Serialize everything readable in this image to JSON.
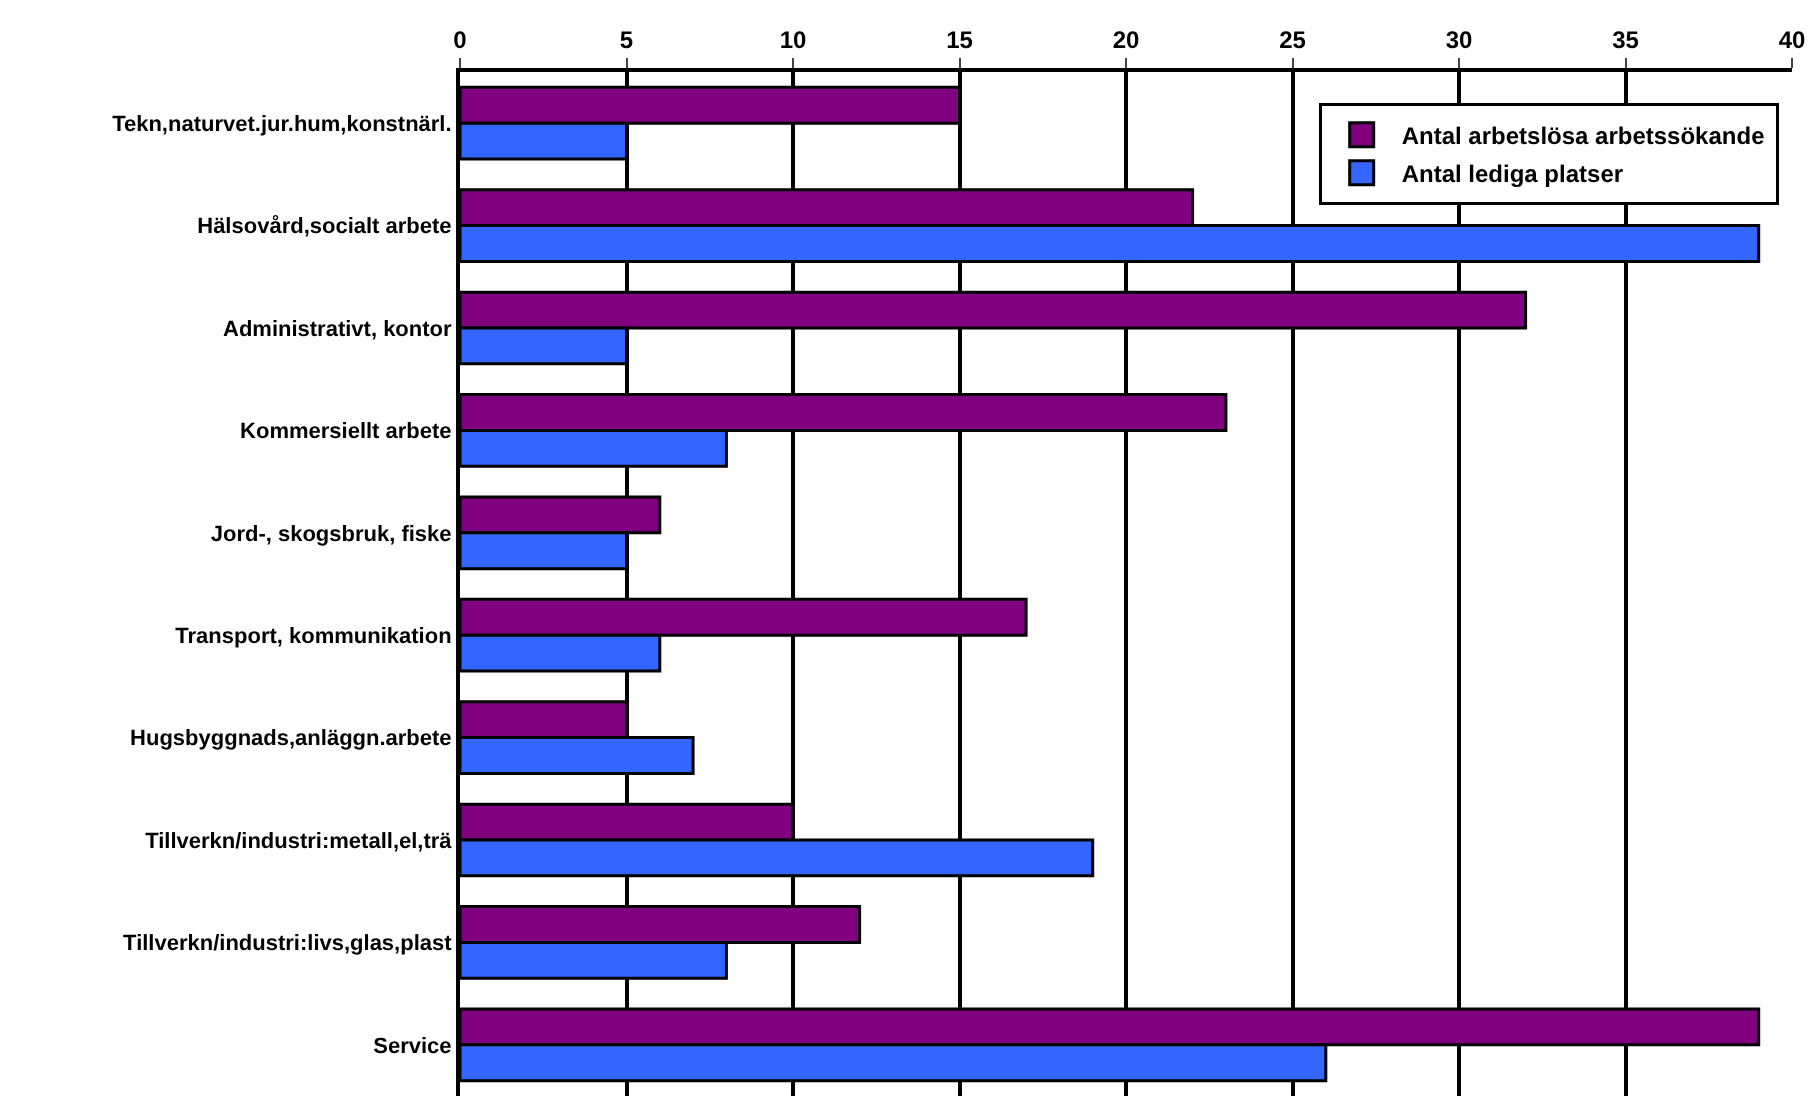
{
  "chart_data": {
    "type": "bar",
    "orientation": "horizontal",
    "categories": [
      "Tekn,naturvet.jur.hum,konstnärl.",
      "Hälsovård,socialt arbete",
      "Administrativt, kontor",
      "Kommersiellt arbete",
      "Jord-, skogsbruk, fiske",
      "Transport, kommunikation",
      "Hugsbyggnads,anläggn.arbete",
      "Tillverkn/industri:metall,el,trä",
      "Tillverkn/industri:livs,glas,plast",
      "Service"
    ],
    "series": [
      {
        "name": "Antal arbetslösa arbetssökande",
        "color": "#800080",
        "values": [
          15,
          22,
          32,
          23,
          6,
          17,
          5,
          10,
          12,
          39
        ]
      },
      {
        "name": "Antal lediga platser",
        "color": "#3366ff",
        "values": [
          5,
          39,
          5,
          8,
          5,
          6,
          7,
          19,
          8,
          26
        ]
      }
    ],
    "xlim": [
      0,
      40
    ],
    "xticks": [
      0,
      5,
      10,
      15,
      20,
      25,
      30,
      35,
      40
    ],
    "grid": "x",
    "legend": "top right"
  }
}
